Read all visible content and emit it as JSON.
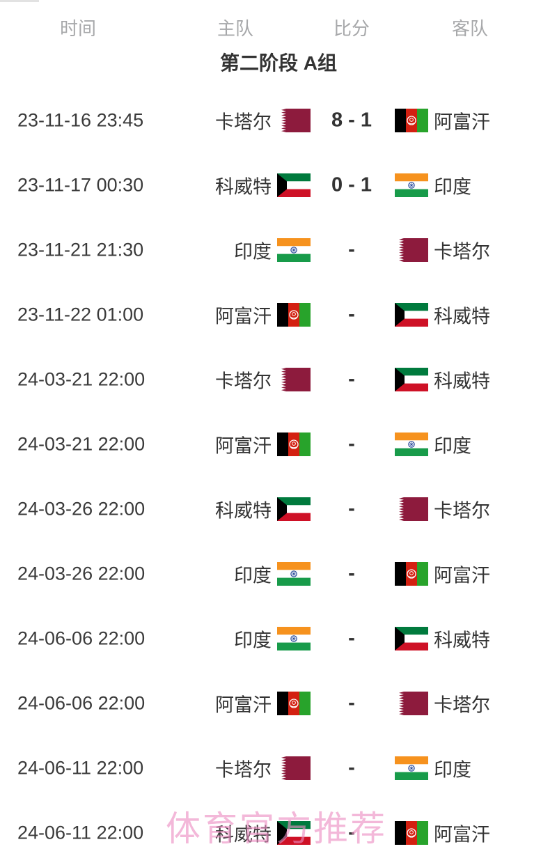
{
  "header": {
    "time": "时间",
    "home": "主队",
    "score": "比分",
    "away": "客队"
  },
  "group_title": "第二阶段 A组",
  "watermark": {
    "text": "体育官方推荐",
    "color": "#ec8cc2"
  },
  "colors": {
    "text_dark": "#333333",
    "header_gray": "#a7a8aa",
    "qatar_maroon": "#8d1b3d",
    "afghan_black": "#000000",
    "afghan_red": "#d32011",
    "afghan_green": "#28a32b",
    "kuwait_green": "#007a3d",
    "kuwait_red": "#ce1126",
    "kuwait_black": "#000000",
    "india_saffron": "#f6921e",
    "india_green": "#189b4a",
    "india_navy": "#2a4b9b",
    "white": "#ffffff"
  },
  "matches": [
    {
      "time": "23-11-16 23:45",
      "home": {
        "name": "卡塔尔",
        "flag": "qatar"
      },
      "score": "8 - 1",
      "away": {
        "name": "阿富汗",
        "flag": "afghanistan"
      }
    },
    {
      "time": "23-11-17 00:30",
      "home": {
        "name": "科威特",
        "flag": "kuwait"
      },
      "score": "0 - 1",
      "away": {
        "name": "印度",
        "flag": "india"
      }
    },
    {
      "time": "23-11-21 21:30",
      "home": {
        "name": "印度",
        "flag": "india"
      },
      "score": "-",
      "away": {
        "name": "卡塔尔",
        "flag": "qatar"
      }
    },
    {
      "time": "23-11-22 01:00",
      "home": {
        "name": "阿富汗",
        "flag": "afghanistan"
      },
      "score": "-",
      "away": {
        "name": "科威特",
        "flag": "kuwait"
      }
    },
    {
      "time": "24-03-21 22:00",
      "home": {
        "name": "卡塔尔",
        "flag": "qatar"
      },
      "score": "-",
      "away": {
        "name": "科威特",
        "flag": "kuwait"
      }
    },
    {
      "time": "24-03-21 22:00",
      "home": {
        "name": "阿富汗",
        "flag": "afghanistan"
      },
      "score": "-",
      "away": {
        "name": "印度",
        "flag": "india"
      }
    },
    {
      "time": "24-03-26 22:00",
      "home": {
        "name": "科威特",
        "flag": "kuwait"
      },
      "score": "-",
      "away": {
        "name": "卡塔尔",
        "flag": "qatar"
      }
    },
    {
      "time": "24-03-26 22:00",
      "home": {
        "name": "印度",
        "flag": "india"
      },
      "score": "-",
      "away": {
        "name": "阿富汗",
        "flag": "afghanistan"
      }
    },
    {
      "time": "24-06-06 22:00",
      "home": {
        "name": "印度",
        "flag": "india"
      },
      "score": "-",
      "away": {
        "name": "科威特",
        "flag": "kuwait"
      }
    },
    {
      "time": "24-06-06 22:00",
      "home": {
        "name": "阿富汗",
        "flag": "afghanistan"
      },
      "score": "-",
      "away": {
        "name": "卡塔尔",
        "flag": "qatar"
      }
    },
    {
      "time": "24-06-11 22:00",
      "home": {
        "name": "卡塔尔",
        "flag": "qatar"
      },
      "score": "-",
      "away": {
        "name": "印度",
        "flag": "india"
      }
    },
    {
      "time": "24-06-11 22:00",
      "home": {
        "name": "科威特",
        "flag": "kuwait"
      },
      "score": "-",
      "away": {
        "name": "阿富汗",
        "flag": "afghanistan"
      }
    }
  ]
}
